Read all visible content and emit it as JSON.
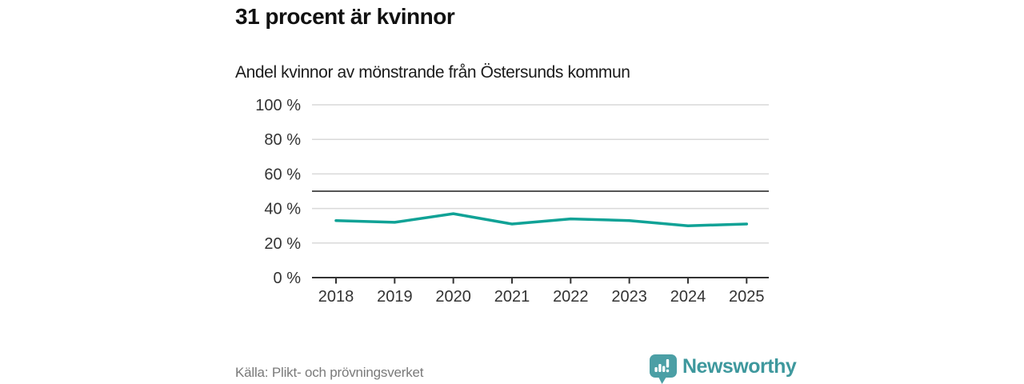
{
  "header": {
    "title": "31 procent är kvinnor",
    "subtitle": "Andel kvinnor av mönstrande från Östersunds kommun"
  },
  "chart_data": {
    "type": "line",
    "x": [
      2018,
      2019,
      2020,
      2021,
      2022,
      2023,
      2024,
      2025
    ],
    "series": [
      {
        "name": "Andel kvinnor av mönstrande",
        "values": [
          33,
          32,
          37,
          31,
          34,
          33,
          30,
          31
        ]
      }
    ],
    "title": "31 procent är kvinnor",
    "subtitle": "Andel kvinnor av mönstrande från Östersunds kommun",
    "xlabel": "",
    "ylabel": "",
    "ylim": [
      0,
      100
    ],
    "yticks": [
      0,
      20,
      40,
      60,
      80,
      100
    ],
    "ytick_format": "{v} %",
    "reference_line": 50,
    "grid": true,
    "legend": false
  },
  "footer": {
    "source": "Källa: Plikt- och prövningsverket",
    "brand_name": "Newsworthy",
    "logo_icon": "bar-chart-speech-bubble"
  },
  "colors": {
    "line": "#10a296",
    "grid": "#d9d9d9",
    "axis": "#333333",
    "axis_text": "#333333",
    "reference_line": "#555555",
    "title_text": "#111111",
    "subtitle_text": "#1b1b1b",
    "source_text": "#7a7a7a",
    "brand_icon": "#4b9fa5",
    "brand_text": "#3e989d"
  }
}
